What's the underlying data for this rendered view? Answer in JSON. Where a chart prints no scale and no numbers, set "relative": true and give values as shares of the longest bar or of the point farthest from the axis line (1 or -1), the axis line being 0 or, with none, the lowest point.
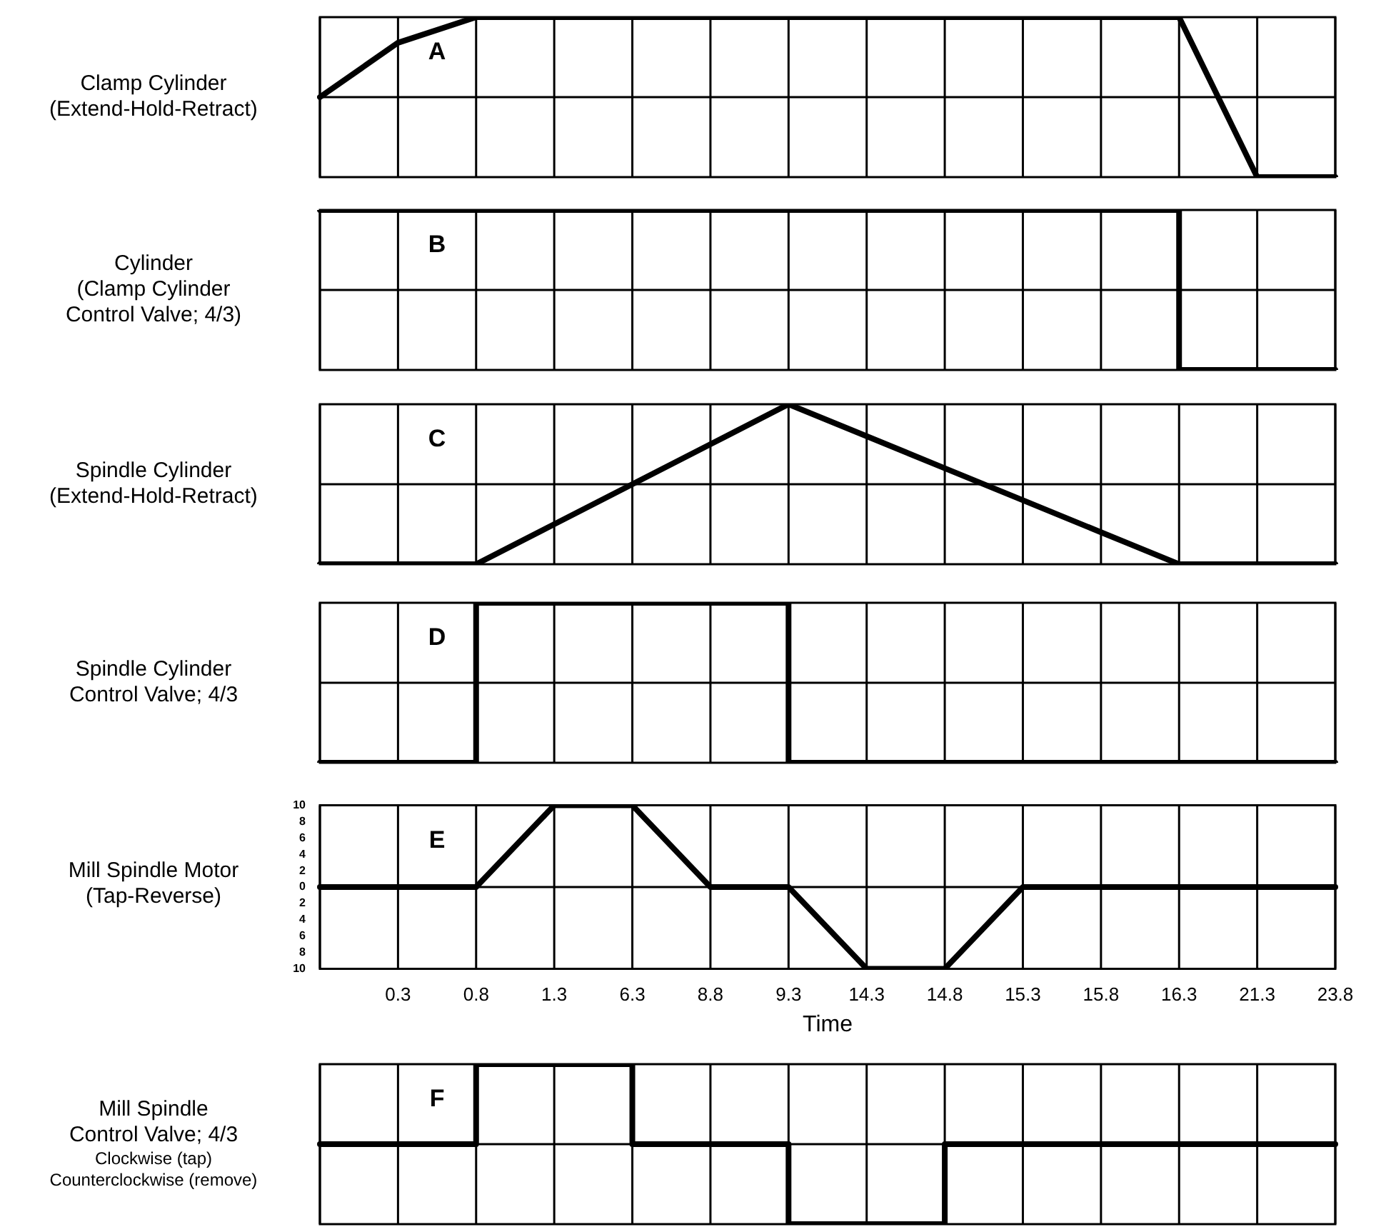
{
  "chart_data": [
    {
      "type": "line",
      "ylabel": "Clamp Cylinder\n(Extend-Hold-Retract)",
      "annotations": [
        "A"
      ],
      "relative": true,
      "categories": [
        null,
        "0.3",
        "0.8",
        "1.3",
        "6.3",
        "8.8",
        "9.3",
        "14.3",
        "14.8",
        "15.3",
        "15.8",
        "16.3",
        "21.3",
        "23.8"
      ],
      "grid": true,
      "tick_labels": false,
      "line_style": "solid",
      "series": [
        {
          "color": "#000000",
          "values": [
            0.5,
            0.84,
            1,
            1,
            1,
            1,
            1,
            1,
            1,
            1,
            1,
            1,
            0,
            0
          ]
        }
      ]
    },
    {
      "type": "step",
      "ylabel": "Cylinder\n(Clamp Cylinder\nControl Valve; 4/3)",
      "annotations": [
        "B"
      ],
      "relative": true,
      "categories": [
        null,
        "0.3",
        "0.8",
        "1.3",
        "6.3",
        "8.8",
        "9.3",
        "14.3",
        "14.8",
        "15.3",
        "15.8",
        "16.3",
        "21.3",
        "23.8"
      ],
      "grid": true,
      "tick_labels": false,
      "line_style": "solid",
      "series": [
        {
          "color": "#000000",
          "values": [
            1,
            1,
            1,
            1,
            1,
            1,
            1,
            1,
            1,
            1,
            1,
            0,
            0,
            0
          ]
        }
      ]
    },
    {
      "type": "line",
      "ylabel": "Spindle Cylinder\n(Extend-Hold-Retract)",
      "annotations": [
        "C"
      ],
      "relative": true,
      "categories": [
        null,
        "0.3",
        "0.8",
        "1.3",
        "6.3",
        "8.8",
        "9.3",
        "14.3",
        "14.8",
        "15.3",
        "15.8",
        "16.3",
        "21.3",
        "23.8"
      ],
      "grid": true,
      "tick_labels": false,
      "line_style": "solid",
      "series": [
        {
          "color": "#000000",
          "values": [
            0,
            0,
            0,
            0.25,
            0.5,
            0.75,
            1,
            0.8,
            0.6,
            0.4,
            0.2,
            0,
            0,
            0
          ]
        }
      ]
    },
    {
      "type": "step",
      "ylabel": "Spindle Cylinder\nControl Valve; 4/3",
      "annotations": [
        "D"
      ],
      "relative": true,
      "categories": [
        null,
        "0.3",
        "0.8",
        "1.3",
        "6.3",
        "8.8",
        "9.3",
        "14.3",
        "14.8",
        "15.3",
        "15.8",
        "16.3",
        "21.3",
        "23.8"
      ],
      "grid": true,
      "tick_labels": false,
      "line_style": "solid",
      "series": [
        {
          "color": "#000000",
          "values": [
            0,
            0,
            1,
            1,
            1,
            1,
            0,
            0,
            0,
            0,
            0,
            0,
            0,
            0
          ]
        }
      ]
    },
    {
      "type": "line",
      "ylabel": "Mill Spindle Motor\n(Tap-Reverse)",
      "xlabel": "Time",
      "annotations": [
        "E"
      ],
      "categories": [
        null,
        "0.3",
        "0.8",
        "1.3",
        "6.3",
        "8.8",
        "9.3",
        "14.3",
        "14.8",
        "15.3",
        "15.8",
        "16.3",
        "21.3",
        "23.8"
      ],
      "ylim": [
        -10,
        10
      ],
      "yticks": [
        {
          "value": -10,
          "label": "10"
        },
        {
          "value": -8,
          "label": "8"
        },
        {
          "value": -6,
          "label": "6"
        },
        {
          "value": -4,
          "label": "4"
        },
        {
          "value": -2,
          "label": "2"
        },
        0,
        2,
        4,
        6,
        8,
        10
      ],
      "grid": true,
      "line_style": "solid",
      "series": [
        {
          "color": "#000000",
          "values": [
            0,
            0,
            0,
            10,
            10,
            0,
            0,
            -10,
            -10,
            0,
            0,
            0,
            0,
            0
          ]
        }
      ]
    },
    {
      "type": "step",
      "ylabel": "Mill Spindle\nControl Valve; 4/3",
      "annotations": [
        "F",
        "Clockwise (tap)",
        "Counterclockwise (remove)"
      ],
      "relative": true,
      "categories": [
        null,
        "0.3",
        "0.8",
        "1.3",
        "6.3",
        "8.8",
        "9.3",
        "14.3",
        "14.8",
        "15.3",
        "15.8",
        "16.3",
        "21.3",
        "23.8"
      ],
      "grid": true,
      "tick_labels": false,
      "line_style": "solid",
      "series": [
        {
          "color": "#000000",
          "values": [
            0.5,
            0.5,
            1,
            1,
            0.5,
            0.5,
            0,
            0,
            0.5,
            0.5,
            0.5,
            0.5,
            0.5,
            0.5
          ]
        }
      ]
    }
  ]
}
